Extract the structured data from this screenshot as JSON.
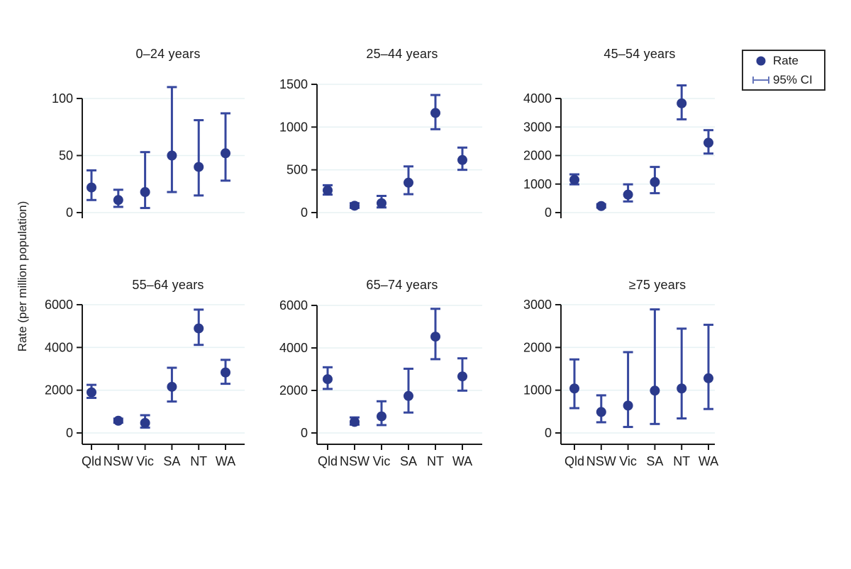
{
  "figure": {
    "ylabel": "Rate (per million population)"
  },
  "legend": {
    "rate_label": "Rate",
    "ci_label": "95% CI"
  },
  "colors": {
    "marker": "#2b3a8c",
    "error_bar": "#36479e",
    "legend_ci": "#6676bb",
    "axis": "#1a1a1a",
    "gridline": "#e7f2f4",
    "text": "#1c1c1c"
  },
  "chart_data": {
    "type": "scatter",
    "subtype": "point-with-95ci-errorbars",
    "categories": [
      "Qld",
      "NSW",
      "Vic",
      "SA",
      "NT",
      "WA"
    ],
    "xlabel": "",
    "ylabel": "Rate (per million population)",
    "grid": true,
    "legend_position": "top-right",
    "panels": [
      {
        "title": "0–24 years",
        "ylim": [
          0,
          100
        ],
        "yticks": [
          0,
          50,
          100
        ],
        "series": [
          {
            "name": "Rate",
            "values": [
              22,
              11,
              18,
              50,
              40,
              52
            ]
          },
          {
            "name": "95% CI low",
            "values": [
              11,
              5,
              4,
              18,
              15,
              28
            ]
          },
          {
            "name": "95% CI high",
            "values": [
              37,
              20,
              53,
              110,
              81,
              87
            ]
          }
        ]
      },
      {
        "title": "25–44 years",
        "ylim": [
          0,
          1500
        ],
        "yticks": [
          0,
          500,
          1000,
          1500
        ],
        "series": [
          {
            "name": "Rate",
            "values": [
              260,
              80,
              110,
              350,
              1165,
              615
            ]
          },
          {
            "name": "95% CI low",
            "values": [
              210,
              55,
              60,
              215,
              975,
              500
            ]
          },
          {
            "name": "95% CI high",
            "values": [
              320,
              110,
              195,
              540,
              1375,
              760
            ]
          }
        ]
      },
      {
        "title": "45–54 years",
        "ylim": [
          0,
          4000
        ],
        "yticks": [
          0,
          1000,
          2000,
          3000,
          4000
        ],
        "series": [
          {
            "name": "Rate",
            "values": [
              1150,
              230,
              630,
              1070,
              3830,
              2450
            ]
          },
          {
            "name": "95% CI low",
            "values": [
              990,
              175,
              390,
              680,
              3270,
              2070
            ]
          },
          {
            "name": "95% CI high",
            "values": [
              1340,
              295,
              990,
              1600,
              4460,
              2890
            ]
          }
        ]
      },
      {
        "title": "55–64 years",
        "ylim": [
          0,
          6000
        ],
        "yticks": [
          0,
          2000,
          4000,
          6000
        ],
        "series": [
          {
            "name": "Rate",
            "values": [
              1900,
              570,
              470,
              2160,
              4890,
              2830
            ]
          },
          {
            "name": "95% CI low",
            "values": [
              1640,
              480,
              250,
              1470,
              4120,
              2300
            ]
          },
          {
            "name": "95% CI high",
            "values": [
              2250,
              670,
              830,
              3050,
              5770,
              3420
            ]
          }
        ]
      },
      {
        "title": "65–74 years",
        "ylim": [
          0,
          6000
        ],
        "yticks": [
          0,
          2000,
          4000,
          6000
        ],
        "series": [
          {
            "name": "Rate",
            "values": [
              2530,
              520,
              780,
              1740,
              4530,
              2660
            ]
          },
          {
            "name": "95% CI low",
            "values": [
              2070,
              390,
              370,
              960,
              3470,
              1990
            ]
          },
          {
            "name": "95% CI high",
            "values": [
              3090,
              730,
              1490,
              3020,
              5840,
              3510
            ]
          }
        ]
      },
      {
        "title": "≥75 years",
        "ylim": [
          0,
          3000
        ],
        "yticks": [
          0,
          1000,
          2000,
          3000
        ],
        "series": [
          {
            "name": "Rate",
            "values": [
              1040,
              490,
              640,
              990,
              1040,
              1280
            ]
          },
          {
            "name": "95% CI low",
            "values": [
              580,
              250,
              140,
              210,
              340,
              560
            ]
          },
          {
            "name": "95% CI high",
            "values": [
              1720,
              880,
              1890,
              2890,
              2440,
              2530
            ]
          }
        ]
      }
    ]
  }
}
